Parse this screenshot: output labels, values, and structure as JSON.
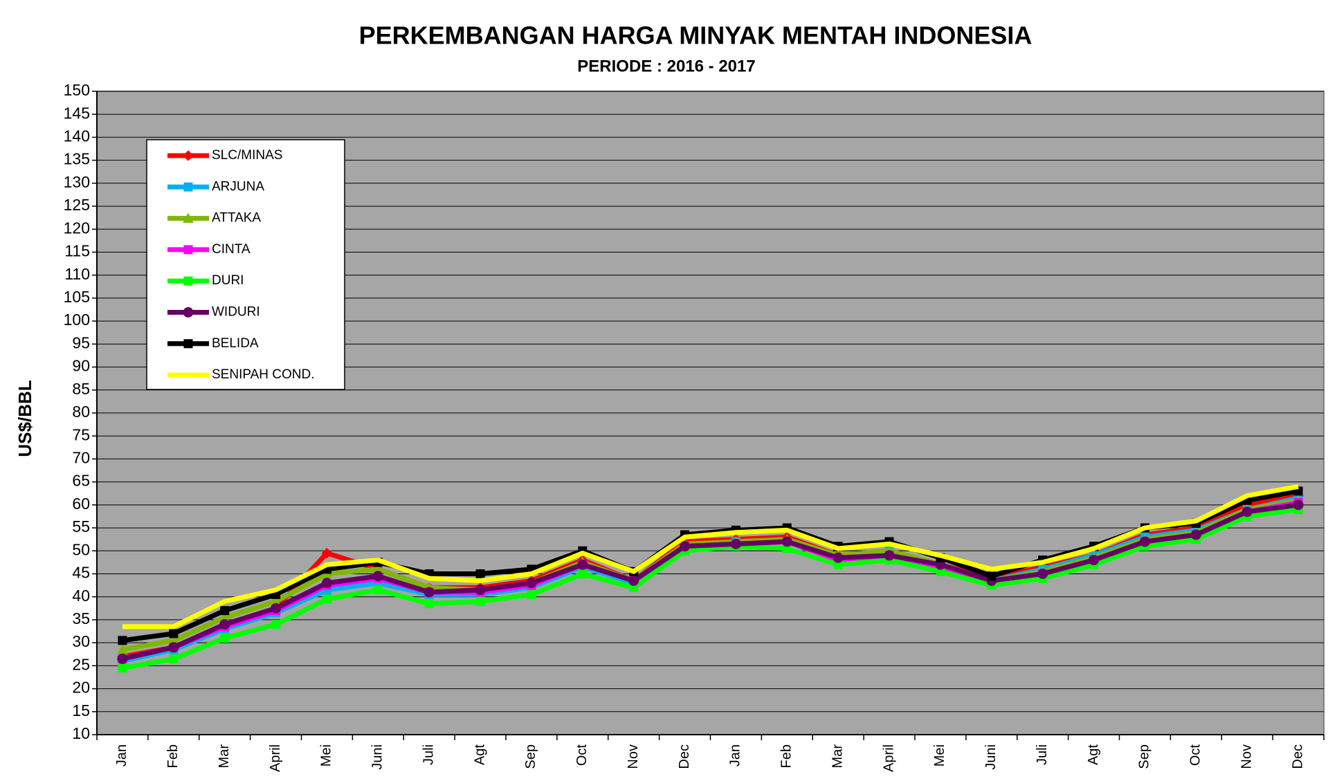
{
  "chart_data": {
    "type": "line",
    "title": "PERKEMBANGAN HARGA MINYAK MENTAH INDONESIA",
    "subtitle": "PERIODE : 2016 - 2017",
    "y_label": "US$/BBL",
    "categories": [
      "Jan",
      "Feb",
      "Mar",
      "April",
      "Mei",
      "Juni",
      "Juli",
      "Agt",
      "Sep",
      "Oct",
      "Nov",
      "Dec",
      "Jan",
      "Feb",
      "Mar",
      "April",
      "Mei",
      "Juni",
      "Juli",
      "Agt",
      "Sep",
      "Oct",
      "Nov",
      "Dec"
    ],
    "ylim": [
      10,
      150
    ],
    "yticks": [
      10,
      15,
      20,
      25,
      30,
      35,
      40,
      45,
      50,
      55,
      60,
      65,
      70,
      75,
      80,
      85,
      90,
      95,
      100,
      105,
      110,
      115,
      120,
      125,
      130,
      135,
      140,
      145,
      150
    ],
    "grid": true,
    "legend": "upper left",
    "series": [
      {
        "name": "SLC/MINAS",
        "color": "#ff0000",
        "marker": "diamond",
        "values": [
          27,
          29,
          34,
          37.5,
          49.5,
          46,
          42,
          42,
          43.5,
          48,
          43.5,
          52,
          52.5,
          53,
          49,
          50,
          47,
          44,
          46.5,
          49,
          53.5,
          55,
          60,
          62
        ]
      },
      {
        "name": "ARJUNA",
        "color": "#00b0f0",
        "marker": "square",
        "values": [
          26,
          28.5,
          33,
          36.5,
          41.5,
          43,
          40.5,
          40.5,
          42,
          46.5,
          43,
          51,
          52,
          52,
          48.5,
          50,
          47,
          43.5,
          46,
          49,
          53,
          54.5,
          59,
          61.5
        ]
      },
      {
        "name": "ATTAKA",
        "color": "#7fb800",
        "marker": "triangle",
        "values": [
          28.5,
          30.5,
          35.5,
          39,
          45,
          46,
          42,
          41.5,
          43,
          47.5,
          43.5,
          51.5,
          52,
          52.5,
          49,
          50,
          47,
          43.5,
          45.5,
          48.5,
          52.5,
          54,
          59,
          61
        ]
      },
      {
        "name": "CINTA",
        "color": "#ff00ff",
        "marker": "square",
        "values": [
          26.5,
          29,
          33.5,
          37,
          42.5,
          44,
          41,
          41,
          42.5,
          47,
          43.5,
          51,
          51.5,
          52,
          48,
          49,
          46.5,
          43.5,
          45,
          48,
          52,
          53.5,
          58.5,
          60.5
        ]
      },
      {
        "name": "DURI",
        "color": "#00ff00",
        "marker": "square",
        "values": [
          24.5,
          26.5,
          31,
          34,
          39.5,
          41.5,
          38.5,
          39,
          40.5,
          45,
          42,
          50,
          51,
          50.5,
          47,
          48,
          45.5,
          42.5,
          44,
          47,
          51,
          52.5,
          57.5,
          59
        ]
      },
      {
        "name": "WIDURI",
        "color": "#660066",
        "marker": "circle",
        "values": [
          26.5,
          29,
          34,
          37.5,
          43,
          44.5,
          41,
          41.5,
          43,
          47,
          43.5,
          51,
          51.5,
          52,
          48.5,
          49,
          47,
          43.5,
          45,
          48,
          52,
          53.5,
          58.5,
          60
        ]
      },
      {
        "name": "BELIDA",
        "color": "#000000",
        "marker": "square",
        "values": [
          30.5,
          32,
          37,
          40.5,
          46,
          47.5,
          45,
          45,
          46,
          50,
          45.5,
          53.5,
          54.5,
          55,
          51,
          52,
          48.5,
          44.5,
          48,
          51,
          55,
          56,
          61,
          63
        ]
      },
      {
        "name": "SENIPAH COND.",
        "color": "#ffff00",
        "marker": "none",
        "values": [
          33.5,
          33.5,
          39,
          41.5,
          47,
          48,
          44,
          43.5,
          45,
          49.5,
          45.5,
          53,
          54,
          54.5,
          50.5,
          51.5,
          49,
          46,
          47.5,
          50.5,
          55,
          56.5,
          62,
          64
        ]
      }
    ]
  }
}
